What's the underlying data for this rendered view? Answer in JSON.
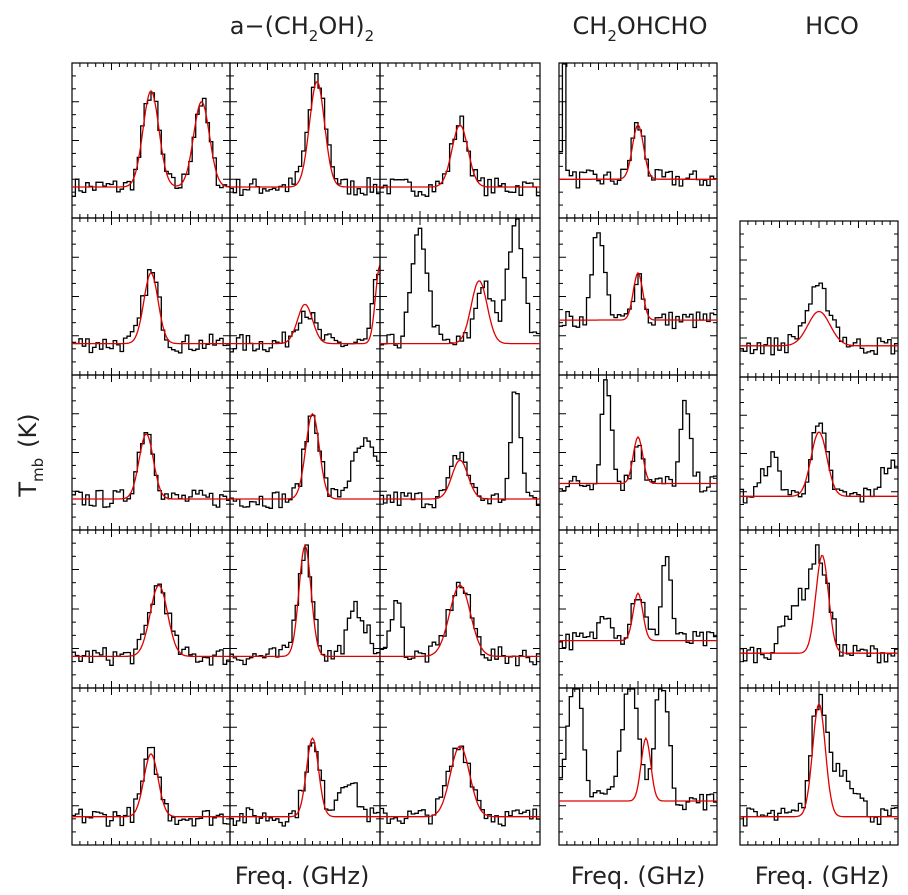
{
  "titles": [
    {
      "parts": [
        "a−(CH",
        "2",
        "OH)",
        "2"
      ]
    },
    {
      "parts": [
        "CH",
        "2",
        "OHCHO"
      ]
    },
    {
      "parts": [
        "HCO"
      ]
    }
  ],
  "y_label": {
    "main": "T",
    "sub": "mb",
    "unit": "(K)"
  },
  "x_labels": [
    "Freq. (GHz)",
    "Freq. (GHz)",
    "Freq. (GHz)"
  ]
}
